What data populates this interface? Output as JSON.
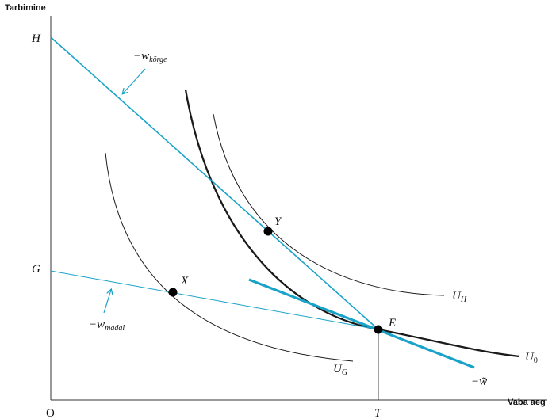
{
  "axes": {
    "y_title": "Tarbimine",
    "x_title": "Vaba aeg",
    "origin": "O",
    "x_tick_T": "T",
    "y_tick_H": "H",
    "y_tick_G": "G"
  },
  "points": {
    "X": "X",
    "Y": "Y",
    "E": "E"
  },
  "curves": {
    "U_H": {
      "base": "U",
      "sub": "H"
    },
    "U_0": {
      "base": "U",
      "sub": "0"
    },
    "U_G": {
      "base": "U",
      "sub": "G"
    }
  },
  "budget_lines": {
    "high_wage": {
      "prefix": "−w",
      "sub": "kõrge"
    },
    "low_wage": {
      "prefix": "−w",
      "sub": "madal"
    },
    "tangent": {
      "label": "−w̃"
    }
  },
  "colors": {
    "budget_line": "#1aa3c8",
    "curve": "#1a1a1a",
    "axis": "#333333",
    "point": "#000000"
  }
}
